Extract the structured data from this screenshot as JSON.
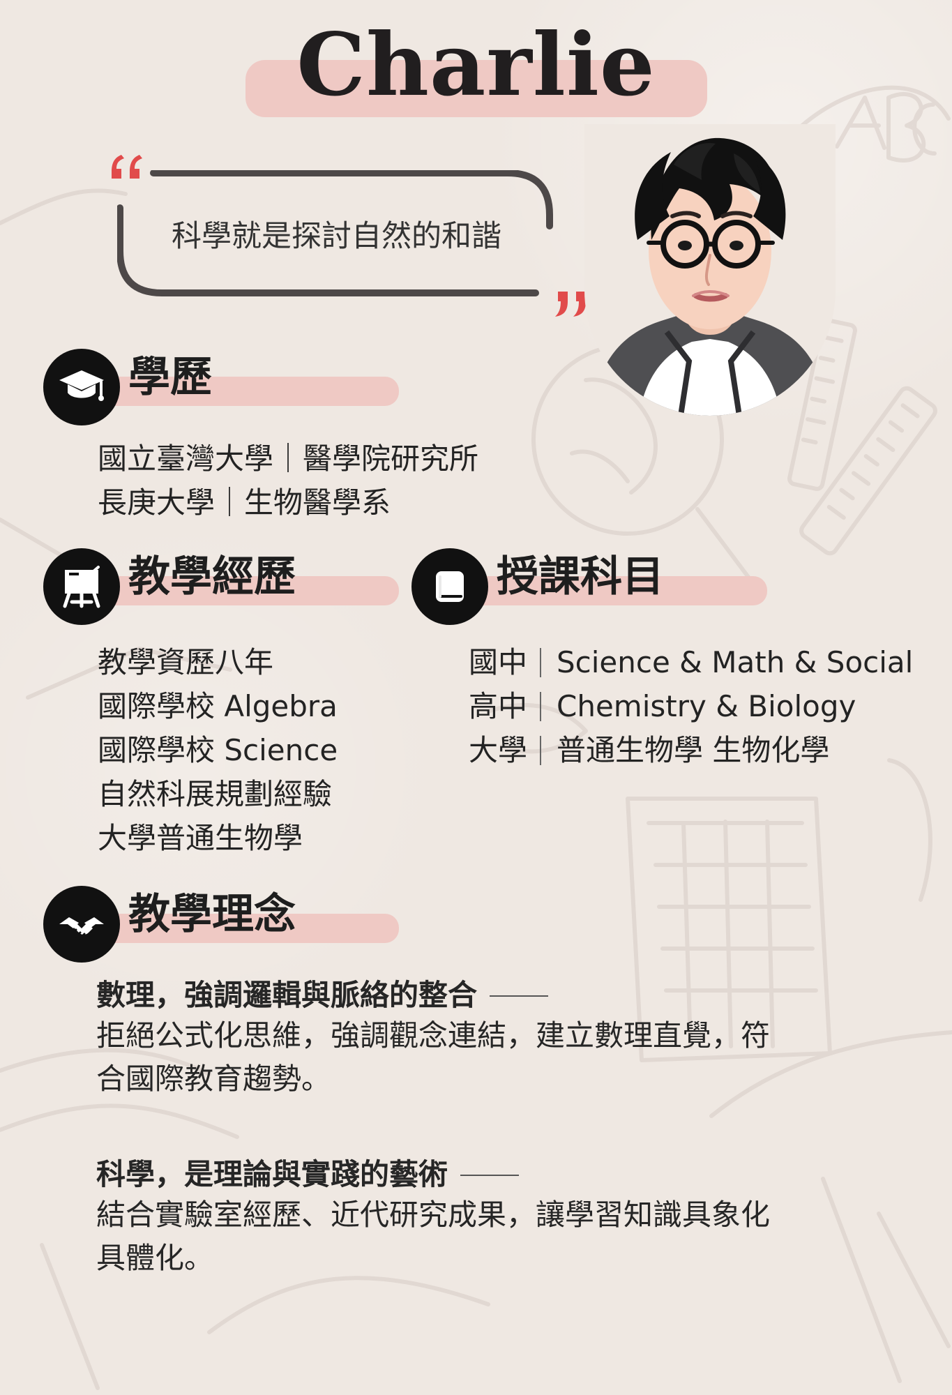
{
  "header": {
    "name": "Charlie",
    "quote": "科學就是探討自然的和諧"
  },
  "sections": {
    "education": {
      "title": "學歷",
      "lines": [
        "國立臺灣大學｜醫學院研究所",
        "長庚大學｜生物醫學系"
      ]
    },
    "teaching_experience": {
      "title": "教學經歷",
      "lines": [
        "教學資歷八年",
        "國際學校 Algebra",
        "國際學校 Science",
        "自然科展規劃經驗",
        "大學普通生物學"
      ]
    },
    "subjects": {
      "title": "授課科目",
      "items": [
        {
          "level": "國中",
          "subject": "Science & Math & Social"
        },
        {
          "level": "高中",
          "subject": "Chemistry & Biology"
        },
        {
          "level": "大學",
          "subject": "普通生物學 生物化學"
        }
      ]
    },
    "philosophy": {
      "title": "教學理念",
      "blocks": [
        {
          "heading": "數理，強調邏輯與脈絡的整合",
          "body_line_1": "拒絕公式化思維，強調觀念連結，建立數理直覺，符",
          "body_line_2": "合國際教育趨勢。"
        },
        {
          "heading": "科學，是理論與實踐的藝術",
          "body_line_1": "結合實驗室經歷、近代研究成果，讓學習知識具象化",
          "body_line_2": "具體化。"
        }
      ]
    }
  },
  "icons": {
    "education": "graduation-cap-icon",
    "teaching_experience": "teaching-board-icon",
    "subjects": "book-icon",
    "philosophy": "handshake-icon",
    "quote_open": "open-quote-icon",
    "quote_close": "close-quote-icon",
    "avatar": "portrait-avatar-icon"
  },
  "colors": {
    "background": "#efe8e2",
    "highlight": "#efc9c4",
    "accent_quote": "#e14b4b",
    "icon_background": "#111111",
    "text_primary": "#1f1f1f"
  }
}
